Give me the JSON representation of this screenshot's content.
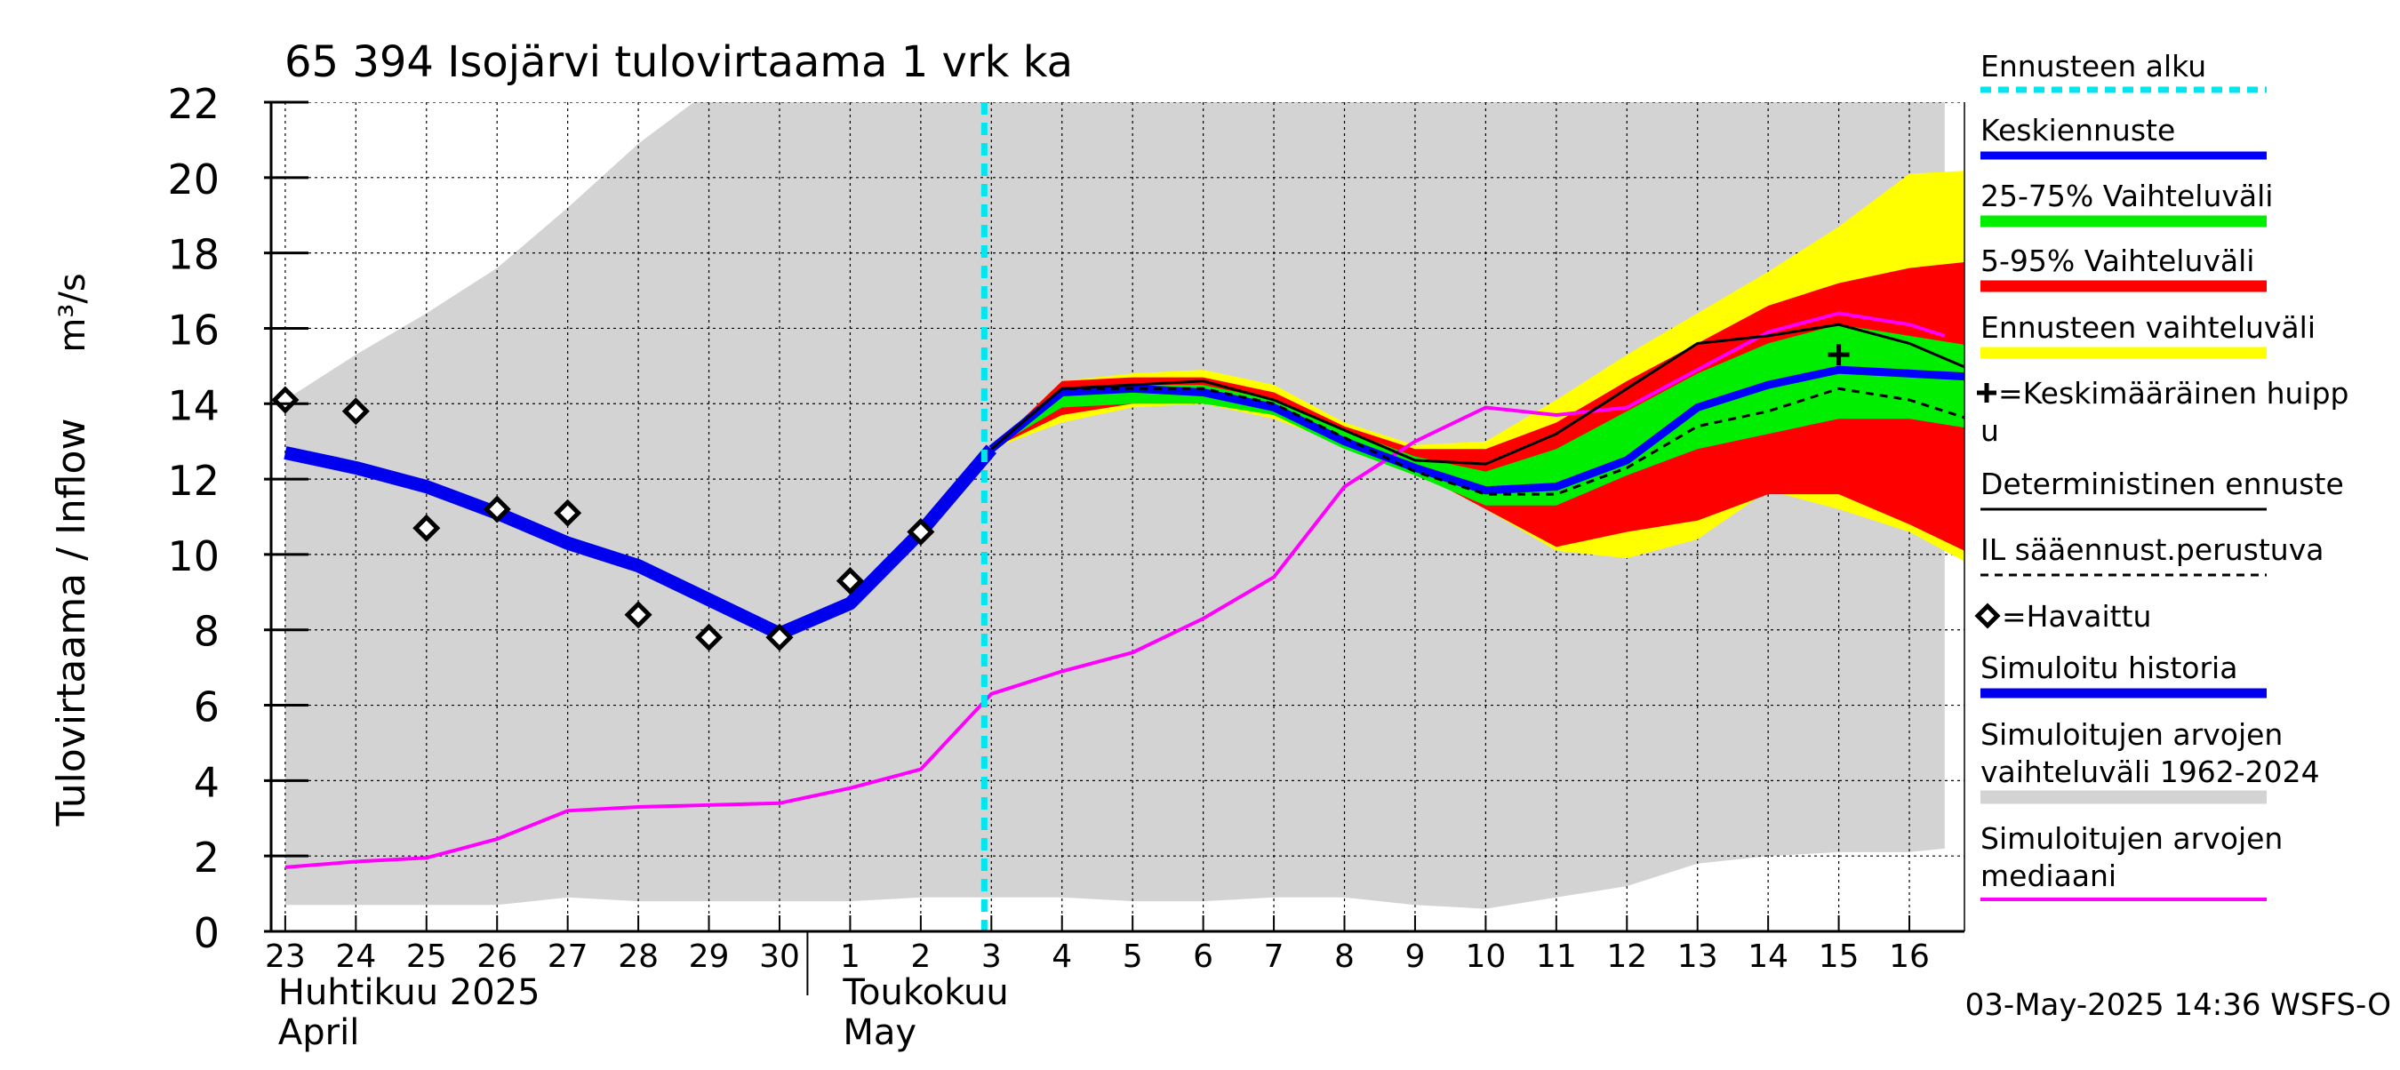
{
  "chart_data": {
    "type": "line",
    "title": "65 394 Isojärvi tulovirtaama 1 vrk ka",
    "ylabel_fi": "Tulovirtaama / Inflow",
    "ylabel_unit": "m³/s",
    "ylim": [
      0,
      22
    ],
    "yticks": [
      0,
      2,
      4,
      6,
      8,
      10,
      12,
      14,
      16,
      18,
      20,
      22
    ],
    "grid": true,
    "x_start_day": 23,
    "x_count": 24,
    "x_tick_labels": [
      "23",
      "24",
      "25",
      "26",
      "27",
      "28",
      "29",
      "30",
      "1",
      "2",
      "3",
      "4",
      "5",
      "6",
      "7",
      "8",
      "9",
      "10",
      "11",
      "12",
      "13",
      "14",
      "15",
      "16"
    ],
    "month_labels": [
      {
        "fi": "Huhtikuu  2025",
        "en": "April",
        "start_index": 0
      },
      {
        "fi": "Toukokuu",
        "en": "May",
        "start_index": 8
      }
    ],
    "forecast_start_index": 10,
    "timestamp": "03-May-2025 14:36 WSFS-O",
    "legend": {
      "forecast_start": "Ennusteen alku",
      "mean_forecast": "Keskiennuste",
      "range_25_75": "25-75% Vaihteluväli",
      "range_5_95": "5-95% Vaihteluväli",
      "forecast_range": "Ennusteen vaihteluväli",
      "mean_peak_a": "=Keskimääräinen huipp",
      "mean_peak_b": "u",
      "deterministic": "Deterministinen ennuste",
      "il_forecast": "IL sääennust.perustuva",
      "observed": "=Havaittu",
      "sim_history": "Simuloitu historia",
      "sim_range_a": "Simuloitujen arvojen",
      "sim_range_b": "vaihteluväli 1962-2024",
      "sim_median_a": "Simuloitujen arvojen",
      "sim_median_b": "mediaani"
    },
    "colors": {
      "forecast_start": "#00e5ee",
      "mean_forecast": "#0000ff",
      "range_25_75": "#00ee00",
      "range_5_95": "#ff0000",
      "forecast_range": "#ffff00",
      "deterministic": "#000000",
      "il_forecast": "#000000",
      "sim_history": "#0000ee",
      "sim_range": "#d3d3d3",
      "sim_median": "#ff00ff"
    },
    "sim_range_upper": [
      [
        0,
        14.1
      ],
      [
        1,
        15.3
      ],
      [
        2,
        16.4
      ],
      [
        3,
        17.6
      ],
      [
        4,
        19.2
      ],
      [
        5,
        20.9
      ],
      [
        6,
        22.3
      ],
      [
        7,
        22.5
      ],
      [
        23.5,
        22.5
      ]
    ],
    "sim_range_lower": [
      [
        0,
        0.7
      ],
      [
        1,
        0.7
      ],
      [
        2,
        0.7
      ],
      [
        3,
        0.7
      ],
      [
        4,
        0.9
      ],
      [
        5,
        0.8
      ],
      [
        6,
        0.8
      ],
      [
        7,
        0.8
      ],
      [
        8,
        0.8
      ],
      [
        9,
        0.9
      ],
      [
        10,
        0.9
      ],
      [
        11,
        0.9
      ],
      [
        12,
        0.8
      ],
      [
        13,
        0.8
      ],
      [
        14,
        0.9
      ],
      [
        15,
        0.9
      ],
      [
        16,
        0.7
      ],
      [
        17,
        0.6
      ],
      [
        18,
        0.9
      ],
      [
        19,
        1.2
      ],
      [
        20,
        1.8
      ],
      [
        21,
        2.0
      ],
      [
        22,
        2.1
      ],
      [
        23,
        2.1
      ],
      [
        23.5,
        2.2
      ]
    ],
    "sim_median": [
      [
        0,
        1.7
      ],
      [
        1,
        1.85
      ],
      [
        2,
        1.95
      ],
      [
        3,
        2.45
      ],
      [
        4,
        3.2
      ],
      [
        5,
        3.3
      ],
      [
        6,
        3.35
      ],
      [
        7,
        3.4
      ],
      [
        8,
        3.8
      ],
      [
        9,
        4.3
      ],
      [
        10,
        6.3
      ],
      [
        11,
        6.9
      ],
      [
        12,
        7.4
      ],
      [
        13,
        8.3
      ],
      [
        14,
        9.4
      ],
      [
        15,
        11.8
      ],
      [
        16,
        13.0
      ],
      [
        17,
        13.9
      ],
      [
        18,
        13.7
      ],
      [
        19,
        13.9
      ],
      [
        20,
        14.9
      ],
      [
        21,
        15.9
      ],
      [
        22,
        16.4
      ],
      [
        23,
        16.1
      ],
      [
        23.5,
        15.8
      ]
    ],
    "sim_history": [
      [
        0,
        12.7
      ],
      [
        1,
        12.3
      ],
      [
        2,
        11.8
      ],
      [
        3,
        11.1
      ],
      [
        4,
        10.3
      ],
      [
        5,
        9.7
      ],
      [
        6,
        8.8
      ],
      [
        7,
        7.9
      ],
      [
        8,
        8.7
      ],
      [
        9,
        10.6
      ],
      [
        10,
        12.8
      ]
    ],
    "observed": [
      [
        0,
        14.1
      ],
      [
        1,
        13.8
      ],
      [
        2,
        10.7
      ],
      [
        3,
        11.2
      ],
      [
        4,
        11.1
      ],
      [
        5,
        8.4
      ],
      [
        6,
        7.8
      ],
      [
        7,
        7.8
      ],
      [
        8,
        9.3
      ],
      [
        9,
        10.6
      ]
    ],
    "forecast_range_upper": [
      [
        10,
        12.8
      ],
      [
        11,
        14.6
      ],
      [
        12,
        14.8
      ],
      [
        13,
        14.9
      ],
      [
        14,
        14.5
      ],
      [
        15,
        13.5
      ],
      [
        16,
        12.9
      ],
      [
        17,
        13.0
      ],
      [
        18,
        14.1
      ],
      [
        19,
        15.3
      ],
      [
        20,
        16.4
      ],
      [
        21,
        17.5
      ],
      [
        22,
        18.7
      ],
      [
        23,
        20.1
      ],
      [
        24,
        20.2
      ]
    ],
    "forecast_range_lower": [
      [
        24,
        9.6
      ],
      [
        23,
        10.6
      ],
      [
        22,
        11.2
      ],
      [
        21,
        11.7
      ],
      [
        20,
        10.4
      ],
      [
        19,
        9.9
      ],
      [
        18,
        10.1
      ],
      [
        17,
        11.2
      ],
      [
        16,
        12.2
      ],
      [
        15,
        12.9
      ],
      [
        14,
        13.6
      ],
      [
        13,
        14.0
      ],
      [
        12,
        13.9
      ],
      [
        11,
        13.5
      ],
      [
        10,
        12.8
      ]
    ],
    "p5_95_upper": [
      [
        10,
        12.8
      ],
      [
        11,
        14.6
      ],
      [
        12,
        14.7
      ],
      [
        13,
        14.7
      ],
      [
        14,
        14.3
      ],
      [
        15,
        13.4
      ],
      [
        16,
        12.8
      ],
      [
        17,
        12.8
      ],
      [
        18,
        13.5
      ],
      [
        19,
        14.6
      ],
      [
        20,
        15.6
      ],
      [
        21,
        16.6
      ],
      [
        22,
        17.2
      ],
      [
        23,
        17.6
      ],
      [
        24,
        17.8
      ]
    ],
    "p5_95_lower": [
      [
        24,
        9.9
      ],
      [
        23,
        10.8
      ],
      [
        22,
        11.6
      ],
      [
        21,
        11.6
      ],
      [
        20,
        10.9
      ],
      [
        19,
        10.6
      ],
      [
        18,
        10.2
      ],
      [
        17,
        11.2
      ],
      [
        16,
        12.2
      ],
      [
        15,
        12.9
      ],
      [
        14,
        13.7
      ],
      [
        13,
        14.1
      ],
      [
        12,
        14.0
      ],
      [
        11,
        13.7
      ],
      [
        10,
        12.8
      ]
    ],
    "p25_75_upper": [
      [
        10,
        12.8
      ],
      [
        11,
        14.4
      ],
      [
        12,
        14.5
      ],
      [
        13,
        14.5
      ],
      [
        14,
        14.1
      ],
      [
        15,
        13.3
      ],
      [
        16,
        12.6
      ],
      [
        17,
        12.2
      ],
      [
        18,
        12.8
      ],
      [
        19,
        13.8
      ],
      [
        20,
        14.8
      ],
      [
        21,
        15.6
      ],
      [
        22,
        16.1
      ],
      [
        23,
        15.8
      ],
      [
        24,
        15.5
      ]
    ],
    "p25_75_lower": [
      [
        24,
        13.3
      ],
      [
        23,
        13.6
      ],
      [
        22,
        13.6
      ],
      [
        21,
        13.2
      ],
      [
        20,
        12.8
      ],
      [
        19,
        12.1
      ],
      [
        18,
        11.3
      ],
      [
        17,
        11.3
      ],
      [
        16,
        12.1
      ],
      [
        15,
        12.8
      ],
      [
        14,
        13.7
      ],
      [
        13,
        14.0
      ],
      [
        12,
        14.0
      ],
      [
        11,
        13.9
      ],
      [
        10,
        12.8
      ]
    ],
    "mean_forecast": [
      [
        10,
        12.8
      ],
      [
        11,
        14.3
      ],
      [
        12,
        14.4
      ],
      [
        13,
        14.3
      ],
      [
        14,
        13.9
      ],
      [
        15,
        13.0
      ],
      [
        16,
        12.3
      ],
      [
        17,
        11.7
      ],
      [
        18,
        11.8
      ],
      [
        19,
        12.5
      ],
      [
        20,
        13.9
      ],
      [
        21,
        14.5
      ],
      [
        22,
        14.9
      ],
      [
        23,
        14.8
      ],
      [
        24,
        14.7
      ]
    ],
    "deterministic": [
      [
        10,
        12.8
      ],
      [
        11,
        14.4
      ],
      [
        12,
        14.5
      ],
      [
        13,
        14.6
      ],
      [
        14,
        14.1
      ],
      [
        15,
        13.3
      ],
      [
        16,
        12.5
      ],
      [
        17,
        12.4
      ],
      [
        18,
        13.2
      ],
      [
        19,
        14.4
      ],
      [
        20,
        15.6
      ],
      [
        21,
        15.8
      ],
      [
        22,
        16.1
      ],
      [
        23,
        15.6
      ],
      [
        24,
        14.8
      ]
    ],
    "il_forecast": [
      [
        10,
        12.8
      ],
      [
        11,
        14.4
      ],
      [
        12,
        14.4
      ],
      [
        13,
        14.4
      ],
      [
        14,
        14.0
      ],
      [
        15,
        13.1
      ],
      [
        16,
        12.2
      ],
      [
        17,
        11.6
      ],
      [
        18,
        11.6
      ],
      [
        19,
        12.3
      ],
      [
        20,
        13.4
      ],
      [
        21,
        13.8
      ],
      [
        22,
        14.4
      ],
      [
        23,
        14.1
      ],
      [
        24,
        13.5
      ]
    ],
    "mean_peak": [
      22,
      15.3
    ]
  }
}
